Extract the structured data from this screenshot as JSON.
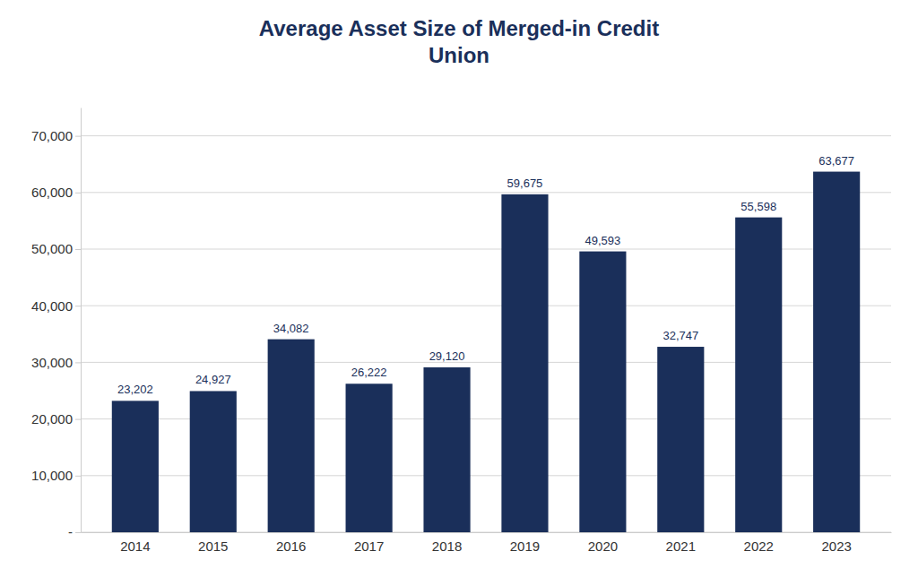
{
  "chart_data": {
    "type": "bar",
    "title": "Average Asset Size of Merged-in Credit\nUnion",
    "categories": [
      "2014",
      "2015",
      "2016",
      "2017",
      "2018",
      "2019",
      "2020",
      "2021",
      "2022",
      "2023"
    ],
    "values": [
      23202,
      24927,
      34082,
      26222,
      29120,
      59675,
      49593,
      32747,
      55598,
      63677
    ],
    "value_labels": [
      "23,202",
      "24,927",
      "34,082",
      "26,222",
      "29,120",
      "59,675",
      "49,593",
      "32,747",
      "55,598",
      "63,677"
    ],
    "data_labels": true,
    "color": "#1a2f5a",
    "ylim": [
      0,
      75000
    ],
    "yticks": [
      {
        "value": 0,
        "label": "-"
      },
      {
        "value": 10000,
        "label": "10,000"
      },
      {
        "value": 20000,
        "label": "20,000"
      },
      {
        "value": 30000,
        "label": "30,000"
      },
      {
        "value": 40000,
        "label": "40,000"
      },
      {
        "value": 50000,
        "label": "50,000"
      },
      {
        "value": 60000,
        "label": "60,000"
      },
      {
        "value": 70000,
        "label": "70,000"
      }
    ],
    "grid": true
  }
}
